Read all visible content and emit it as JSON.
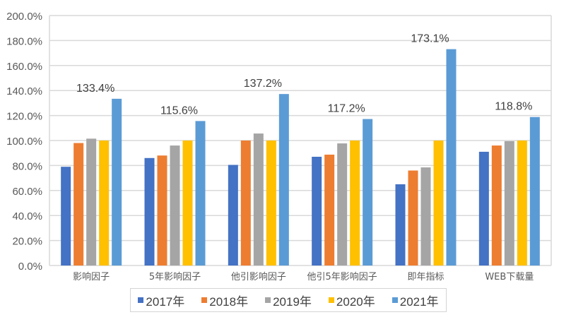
{
  "chart_data": {
    "type": "bar",
    "title": "",
    "xlabel": "",
    "ylabel": "",
    "ylim": [
      0,
      200
    ],
    "yticks": [
      "0.0%",
      "20.0%",
      "40.0%",
      "60.0%",
      "80.0%",
      "100.0%",
      "120.0%",
      "140.0%",
      "160.0%",
      "180.0%",
      "200.0%"
    ],
    "grid": true,
    "legend_position": "bottom",
    "categories": [
      "影响因子",
      "5年影响因子",
      "他引影响因子",
      "他引5年影响因子",
      "即年指标",
      "WEB下载量"
    ],
    "series": [
      {
        "name": "2017年",
        "color": "#4472c4",
        "values": [
          79.0,
          86.0,
          80.5,
          87.0,
          65.0,
          91.0
        ]
      },
      {
        "name": "2018年",
        "color": "#ed7d31",
        "values": [
          98.0,
          88.0,
          100.0,
          88.7,
          76.0,
          96.0
        ]
      },
      {
        "name": "2019年",
        "color": "#a5a5a5",
        "values": [
          101.5,
          96.0,
          105.6,
          97.7,
          78.5,
          99.5
        ]
      },
      {
        "name": "2020年",
        "color": "#ffc000",
        "values": [
          100.0,
          100.0,
          100.0,
          100.0,
          100.0,
          100.0
        ]
      },
      {
        "name": "2021年",
        "color": "#5b9bd5",
        "values": [
          133.4,
          115.6,
          137.2,
          117.2,
          173.1,
          118.8
        ]
      }
    ],
    "data_labels": [
      "133.4%",
      "115.6%",
      "137.2%",
      "117.2%",
      "173.1%",
      "118.8%"
    ]
  }
}
